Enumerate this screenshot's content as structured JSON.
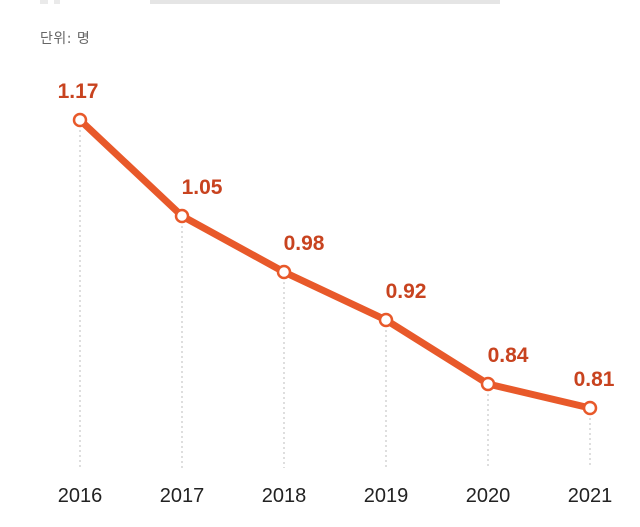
{
  "unit_label": "단위: 명",
  "colors": {
    "line": "#e8592a",
    "label": "#c8431f",
    "guide": "#bdbdbd"
  },
  "chart_data": {
    "type": "line",
    "categories": [
      "2016",
      "2017",
      "2018",
      "2019",
      "2020",
      "2021"
    ],
    "series": [
      {
        "values": [
          1.17,
          1.05,
          0.98,
          0.92,
          0.84,
          0.81
        ]
      }
    ],
    "data_labels": [
      "1.17",
      "1.05",
      "0.98",
      "0.92",
      "0.84",
      "0.81"
    ],
    "title": "",
    "xlabel": "",
    "ylabel": "",
    "ylim": [
      0.62,
      1.2
    ],
    "grid": false,
    "legend": "none"
  }
}
